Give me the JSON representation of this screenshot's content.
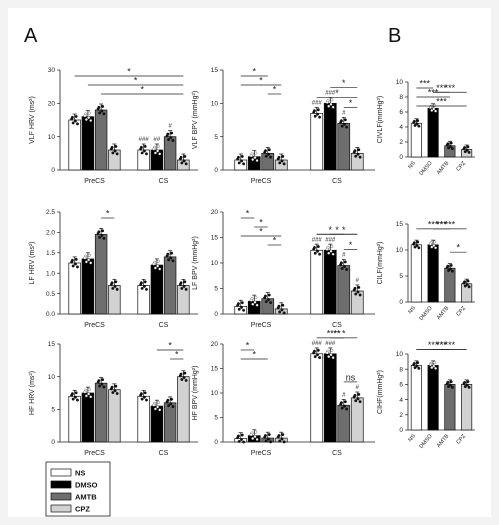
{
  "panel_letters": [
    "A",
    "B"
  ],
  "legend": [
    {
      "name": "NS",
      "color": "#ffffff"
    },
    {
      "name": "DMSO",
      "color": "#000000"
    },
    {
      "name": "AMTB",
      "color": "#6e6e6e"
    },
    {
      "name": "CPZ",
      "color": "#d2d2d2"
    }
  ],
  "colors": {
    "NS": "#ffffff",
    "DMSO": "#000000",
    "AMTB": "#6e6e6e",
    "CPZ": "#d2d2d2"
  },
  "chart_data": [
    {
      "id": "vlf-hrv",
      "type": "bar",
      "ylabel": "VLF HRV (ms²)",
      "ylim": [
        0,
        30
      ],
      "yticks": [
        "0",
        "10",
        "20",
        "30"
      ],
      "groups": [
        "PreCS",
        "CS"
      ],
      "series": [
        {
          "name": "NS",
          "values": [
            15,
            6
          ]
        },
        {
          "name": "DMSO",
          "values": [
            16,
            6
          ]
        },
        {
          "name": "AMTB",
          "values": [
            18,
            10
          ]
        },
        {
          "name": "CPZ",
          "values": [
            6,
            3
          ]
        }
      ],
      "bar_labels": [
        {
          "text": "",
          "group": 1,
          "series": 0
        },
        {
          "text": "###",
          "group": 1,
          "series": 0
        },
        {
          "text": "##",
          "group": 1,
          "series": 1
        },
        {
          "text": "#",
          "group": 1,
          "series": 2
        }
      ],
      "comparisons": [
        {
          "g1": 0,
          "s1": 0,
          "g2": 1,
          "s2": 3,
          "label": "*"
        },
        {
          "g1": 0,
          "s1": 1,
          "g2": 1,
          "s2": 3,
          "label": "*"
        },
        {
          "g1": 0,
          "s1": 2,
          "g2": 1,
          "s2": 3,
          "label": "*"
        }
      ]
    },
    {
      "id": "vlf-bpv",
      "type": "bar",
      "ylabel": "VLF BPV (mmHg²)",
      "ylim": [
        0,
        15
      ],
      "yticks": [
        "0",
        "5",
        "10",
        "15"
      ],
      "groups": [
        "PreCS",
        "CS"
      ],
      "series": [
        {
          "name": "NS",
          "values": [
            1.5,
            8.5
          ]
        },
        {
          "name": "DMSO",
          "values": [
            2,
            10
          ]
        },
        {
          "name": "AMTB",
          "values": [
            2.5,
            7
          ]
        },
        {
          "name": "CPZ",
          "values": [
            1.5,
            2.5
          ]
        }
      ],
      "bar_labels": [
        {
          "text": "###",
          "group": 1,
          "series": 0
        },
        {
          "text": "###",
          "group": 1,
          "series": 1
        },
        {
          "text": "#",
          "group": 1,
          "series": 2
        }
      ],
      "comparisons": [
        {
          "g1": 0,
          "s1": 0,
          "g2": 0,
          "s2": 2,
          "label": "*"
        },
        {
          "g1": 0,
          "s1": 0,
          "g2": 0,
          "s2": 3,
          "label": "*"
        },
        {
          "g1": 0,
          "s1": 2,
          "g2": 0,
          "s2": 3,
          "label": "*"
        },
        {
          "g1": 1,
          "s1": 0,
          "g2": 1,
          "s2": 3,
          "label": "*"
        },
        {
          "g1": 1,
          "s1": 1,
          "g2": 1,
          "s2": 3,
          "label": "*"
        },
        {
          "g1": 1,
          "s1": 2,
          "g2": 1,
          "s2": 3,
          "label": "*"
        }
      ]
    },
    {
      "id": "vlf-b",
      "type": "bar",
      "ylabel": "CIVLF(mmHg²)",
      "ylim": [
        0,
        10
      ],
      "yticks": [
        "0",
        "2",
        "4",
        "6",
        "8",
        "10"
      ],
      "groups": [],
      "categories": [
        "NS",
        "DMSO",
        "AMTB",
        "CPZ"
      ],
      "series": [
        {
          "name": "",
          "values": [
            4.5,
            6.5,
            1.5,
            1
          ]
        }
      ],
      "comparisons": [
        {
          "s1": 0,
          "s2": 1,
          "label": "***"
        },
        {
          "s1": 0,
          "s2": 2,
          "label": "***"
        },
        {
          "s1": 0,
          "s2": 3,
          "label": "***"
        },
        {
          "s1": 1,
          "s2": 2,
          "label": "***"
        },
        {
          "s1": 1,
          "s2": 3,
          "label": "***"
        }
      ]
    },
    {
      "id": "lf-hrv",
      "type": "bar",
      "ylabel": "LF HRV (ms²)",
      "ylim": [
        0,
        2.5
      ],
      "yticks": [
        "0.0",
        "0.5",
        "1.0",
        "1.5",
        "2.0",
        "2.5"
      ],
      "groups": [
        "PreCS",
        "CS"
      ],
      "series": [
        {
          "name": "NS",
          "values": [
            1.25,
            0.7
          ]
        },
        {
          "name": "DMSO",
          "values": [
            1.35,
            1.2
          ]
        },
        {
          "name": "AMTB",
          "values": [
            1.95,
            1.4
          ]
        },
        {
          "name": "CPZ",
          "values": [
            0.7,
            0.7
          ]
        }
      ],
      "bar_labels": [],
      "comparisons": [
        {
          "g1": 0,
          "s1": 2,
          "g2": 0,
          "s2": 3,
          "label": "*"
        }
      ]
    },
    {
      "id": "lf-bpv",
      "type": "bar",
      "ylabel": "LF BPV (mmHg²)",
      "ylim": [
        0,
        20
      ],
      "yticks": [
        "0",
        "5",
        "10",
        "15",
        "20"
      ],
      "groups": [
        "PreCS",
        "CS"
      ],
      "series": [
        {
          "name": "NS",
          "values": [
            1.5,
            12.5
          ]
        },
        {
          "name": "DMSO",
          "values": [
            2.5,
            12.5
          ]
        },
        {
          "name": "AMTB",
          "values": [
            3,
            9.5
          ]
        },
        {
          "name": "CPZ",
          "values": [
            1,
            4.5
          ]
        }
      ],
      "bar_labels": [
        {
          "text": "###",
          "group": 1,
          "series": 0
        },
        {
          "text": "###",
          "group": 1,
          "series": 1
        },
        {
          "text": "#",
          "group": 1,
          "series": 2
        },
        {
          "text": "#",
          "group": 1,
          "series": 3
        }
      ],
      "comparisons": [
        {
          "g1": 0,
          "s1": 0,
          "g2": 0,
          "s2": 1,
          "label": "*"
        },
        {
          "g1": 0,
          "s1": 1,
          "g2": 0,
          "s2": 2,
          "label": "*"
        },
        {
          "g1": 0,
          "s1": 0,
          "g2": 0,
          "s2": 3,
          "label": "*"
        },
        {
          "g1": 0,
          "s1": 2,
          "g2": 0,
          "s2": 3,
          "label": "*"
        },
        {
          "g1": 1,
          "s1": 0,
          "g2": 1,
          "s2": 2,
          "label": "*"
        },
        {
          "g1": 1,
          "s1": 0,
          "g2": 1,
          "s2": 3,
          "label": "*"
        },
        {
          "g1": 1,
          "s1": 1,
          "g2": 1,
          "s2": 3,
          "label": "*"
        },
        {
          "g1": 1,
          "s1": 2,
          "g2": 1,
          "s2": 3,
          "label": "*"
        }
      ]
    },
    {
      "id": "lf-b",
      "type": "bar",
      "ylabel": "CILF(mmHg²)",
      "ylim": [
        0,
        15
      ],
      "yticks": [
        "0",
        "5",
        "10",
        "15"
      ],
      "groups": [],
      "categories": [
        "NS",
        "DMSO",
        "AMTB",
        "CPZ"
      ],
      "series": [
        {
          "name": "",
          "values": [
            11,
            11,
            6.5,
            3.5
          ]
        }
      ],
      "comparisons": [
        {
          "s1": 0,
          "s2": 2,
          "label": "***"
        },
        {
          "s1": 0,
          "s2": 3,
          "label": "***"
        },
        {
          "s1": 1,
          "s2": 2,
          "label": "***"
        },
        {
          "s1": 1,
          "s2": 3,
          "label": "***"
        },
        {
          "s1": 2,
          "s2": 3,
          "label": "*"
        }
      ]
    },
    {
      "id": "hf-hrv",
      "type": "bar",
      "ylabel": "HF HRV (ms²)",
      "ylim": [
        0,
        15
      ],
      "yticks": [
        "0",
        "5",
        "10",
        "15"
      ],
      "groups": [
        "PreCS",
        "CS"
      ],
      "series": [
        {
          "name": "NS",
          "values": [
            7,
            7
          ]
        },
        {
          "name": "DMSO",
          "values": [
            7.5,
            5.5
          ]
        },
        {
          "name": "AMTB",
          "values": [
            9,
            6
          ]
        },
        {
          "name": "CPZ",
          "values": [
            8,
            10
          ]
        }
      ],
      "bar_labels": [],
      "comparisons": [
        {
          "g1": 1,
          "s1": 1,
          "g2": 1,
          "s2": 3,
          "label": "*"
        },
        {
          "g1": 1,
          "s1": 2,
          "g2": 1,
          "s2": 3,
          "label": "*"
        }
      ]
    },
    {
      "id": "hf-bpv",
      "type": "bar",
      "ylabel": "HF BPV (mmHg²)",
      "ylim": [
        0,
        20
      ],
      "yticks": [
        "0",
        "5",
        "10",
        "15",
        "20"
      ],
      "groups": [
        "PreCS",
        "CS"
      ],
      "series": [
        {
          "name": "NS",
          "values": [
            0.7,
            18
          ]
        },
        {
          "name": "DMSO",
          "values": [
            1.3,
            18
          ]
        },
        {
          "name": "AMTB",
          "values": [
            0.8,
            7.5
          ]
        },
        {
          "name": "CPZ",
          "values": [
            0.8,
            9
          ]
        }
      ],
      "bar_labels": [
        {
          "text": "###",
          "group": 1,
          "series": 0
        },
        {
          "text": "###",
          "group": 1,
          "series": 1
        },
        {
          "text": "#",
          "group": 1,
          "series": 2
        },
        {
          "text": "#",
          "group": 1,
          "series": 3
        }
      ],
      "comparisons": [
        {
          "g1": 0,
          "s1": 0,
          "g2": 0,
          "s2": 1,
          "label": "*"
        },
        {
          "g1": 0,
          "s1": 0,
          "g2": 0,
          "s2": 2,
          "label": "*"
        },
        {
          "g1": 1,
          "s1": 0,
          "g2": 1,
          "s2": 2,
          "label": "**"
        },
        {
          "g1": 1,
          "s1": 1,
          "g2": 1,
          "s2": 2,
          "label": "**"
        },
        {
          "g1": 1,
          "s1": 1,
          "g2": 1,
          "s2": 3,
          "label": "*"
        },
        {
          "g1": 1,
          "s1": 0,
          "g2": 1,
          "s2": 3,
          "label": "**"
        },
        {
          "g1": 1,
          "s1": 2,
          "g2": 1,
          "s2": 3,
          "label": "ns"
        }
      ]
    },
    {
      "id": "hf-b",
      "type": "bar",
      "ylabel": "CIHF(mmHg²)",
      "ylim": [
        0,
        10
      ],
      "yticks": [
        "0",
        "2",
        "4",
        "6",
        "8",
        "10"
      ],
      "groups": [],
      "categories": [
        "NS",
        "DMSO",
        "AMTB",
        "CPZ"
      ],
      "series": [
        {
          "name": "",
          "values": [
            8.5,
            8.5,
            6,
            6
          ]
        }
      ],
      "comparisons": [
        {
          "s1": 0,
          "s2": 2,
          "label": "***"
        },
        {
          "s1": 0,
          "s2": 3,
          "label": "***"
        },
        {
          "s1": 1,
          "s2": 2,
          "label": "***"
        },
        {
          "s1": 1,
          "s2": 3,
          "label": "***"
        }
      ]
    }
  ]
}
